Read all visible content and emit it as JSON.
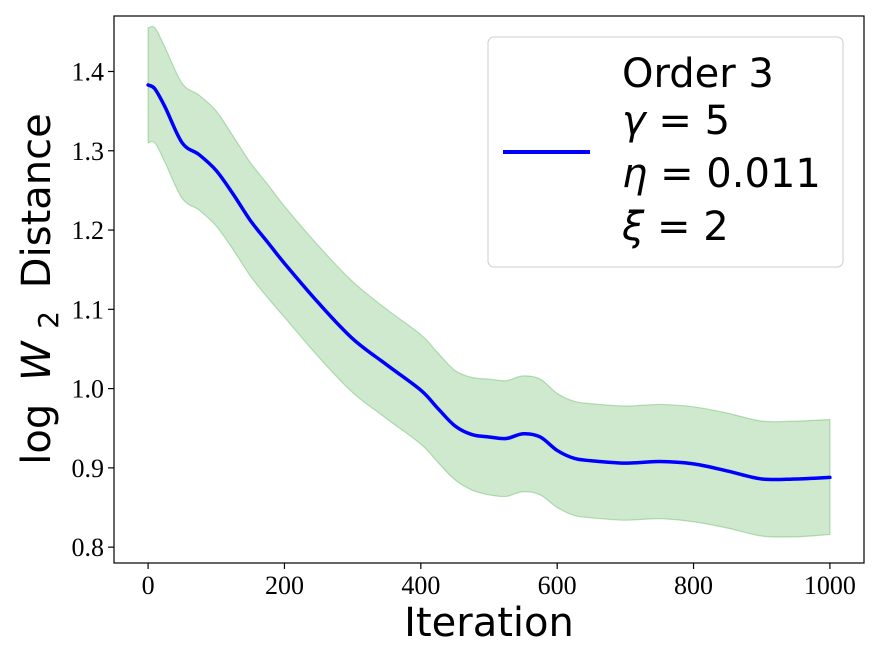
{
  "chart_data": {
    "type": "line",
    "title": "",
    "xlabel": "Iteration",
    "ylabel_prefix": "log",
    "ylabel_symbol": "W",
    "ylabel_subscript": "2",
    "ylabel_suffix": "Distance",
    "xlim": [
      -50,
      1050
    ],
    "ylim": [
      0.78,
      1.47
    ],
    "xticks": [
      0,
      200,
      400,
      600,
      800,
      1000
    ],
    "xtick_labels": [
      "0",
      "200",
      "400",
      "600",
      "800",
      "1000"
    ],
    "yticks": [
      0.8,
      0.9,
      1.0,
      1.1,
      1.2,
      1.3,
      1.4
    ],
    "ytick_labels": [
      "0.8",
      "0.9",
      "1.0",
      "1.1",
      "1.2",
      "1.3",
      "1.4"
    ],
    "grid": false,
    "legend_position": "top-right",
    "legend": {
      "line1": "Order 3",
      "line2_symbol": "γ",
      "line2_value": " = 5",
      "line3_symbol": "η",
      "line3_value": " = 0.011",
      "line4_symbol": "ξ",
      "line4_value": " = 2"
    },
    "series": [
      {
        "color": "#0000ff",
        "band_color": "#2ca02c",
        "x": [
          0,
          10,
          25,
          50,
          75,
          100,
          125,
          150,
          175,
          200,
          250,
          300,
          350,
          400,
          425,
          450,
          475,
          500,
          525,
          550,
          575,
          600,
          625,
          650,
          700,
          750,
          800,
          850,
          900,
          950,
          1000
        ],
        "y": [
          1.383,
          1.378,
          1.355,
          1.31,
          1.295,
          1.275,
          1.245,
          1.212,
          1.185,
          1.158,
          1.108,
          1.063,
          1.03,
          0.998,
          0.975,
          0.953,
          0.942,
          0.939,
          0.937,
          0.943,
          0.939,
          0.922,
          0.912,
          0.909,
          0.906,
          0.908,
          0.905,
          0.896,
          0.886,
          0.886,
          0.888
        ],
        "lower": [
          1.31,
          1.31,
          1.285,
          1.24,
          1.225,
          1.205,
          1.175,
          1.142,
          1.115,
          1.09,
          1.04,
          0.995,
          0.962,
          0.93,
          0.907,
          0.885,
          0.872,
          0.866,
          0.864,
          0.87,
          0.866,
          0.85,
          0.84,
          0.837,
          0.834,
          0.836,
          0.832,
          0.824,
          0.814,
          0.813,
          0.816
        ],
        "upper": [
          1.455,
          1.455,
          1.43,
          1.385,
          1.37,
          1.35,
          1.318,
          1.285,
          1.258,
          1.23,
          1.18,
          1.135,
          1.1,
          1.068,
          1.045,
          1.023,
          1.014,
          1.012,
          1.01,
          1.016,
          1.012,
          0.994,
          0.984,
          0.981,
          0.978,
          0.98,
          0.977,
          0.969,
          0.959,
          0.959,
          0.961
        ]
      }
    ]
  }
}
